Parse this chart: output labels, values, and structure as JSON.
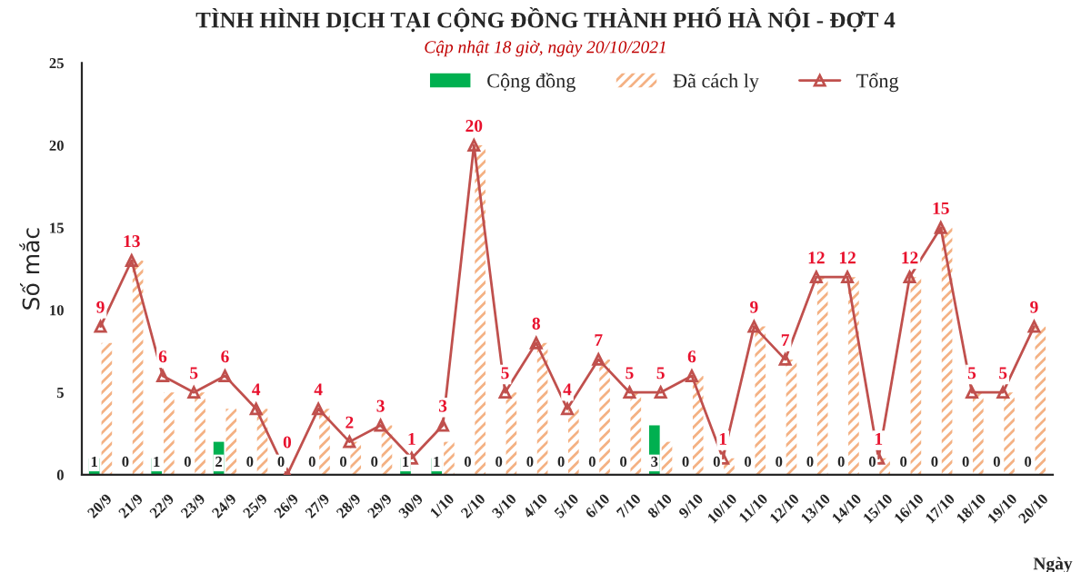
{
  "chart_data": {
    "type": "bar",
    "title": "TÌNH HÌNH DỊCH TẠI CỘNG ĐỒNG THÀNH PHỐ HÀ NỘI - ĐỢT 4",
    "subtitle": "Cập nhật 18 giờ, ngày 20/10/2021",
    "xlabel": "Ngày",
    "ylabel": "Số mắc",
    "categories": [
      "20/9",
      "21/9",
      "22/9",
      "23/9",
      "24/9",
      "25/9",
      "26/9",
      "27/9",
      "28/9",
      "29/9",
      "30/9",
      "1/10",
      "2/10",
      "3/10",
      "4/10",
      "5/10",
      "6/10",
      "7/10",
      "8/10",
      "9/10",
      "10/10",
      "11/10",
      "12/10",
      "13/10",
      "14/10",
      "15/10",
      "16/10",
      "17/10",
      "18/10",
      "19/10",
      "20/10"
    ],
    "series": [
      {
        "name": "Cộng đồng",
        "color": "#00b050",
        "values": [
          1,
          0,
          1,
          0,
          2,
          0,
          0,
          0,
          0,
          0,
          1,
          1,
          0,
          0,
          0,
          0,
          0,
          0,
          3,
          0,
          0,
          0,
          0,
          0,
          0,
          0,
          0,
          0,
          0,
          0,
          0
        ],
        "value_labels": [
          "1",
          "0",
          "1",
          "0",
          "2",
          "0",
          "0",
          "0",
          "0",
          "0",
          "1",
          "1",
          "0",
          "0",
          "0",
          "0",
          "0",
          "0",
          "3",
          "0",
          "0",
          "0",
          "0",
          "0",
          "0",
          "0",
          "0",
          "0",
          "0",
          "0",
          "0"
        ]
      },
      {
        "name": "Đã cách ly",
        "color": "#f4b183",
        "values": [
          8,
          13,
          5,
          5,
          4,
          4,
          0,
          4,
          2,
          3,
          0,
          2,
          20,
          5,
          8,
          4,
          7,
          5,
          2,
          6,
          1,
          9,
          7,
          12,
          12,
          1,
          12,
          15,
          5,
          5,
          9
        ]
      },
      {
        "name": "Tổng",
        "type": "line",
        "color": "#c0504d",
        "marker": "triangle",
        "values": [
          9,
          13,
          6,
          5,
          6,
          4,
          0,
          4,
          2,
          3,
          1,
          3,
          20,
          5,
          8,
          4,
          7,
          5,
          5,
          6,
          1,
          9,
          7,
          12,
          12,
          1,
          12,
          15,
          5,
          5,
          9
        ],
        "value_labels": [
          "9",
          "13",
          "6",
          "5",
          "6",
          "4",
          "0",
          "4",
          "2",
          "3",
          "1",
          "3",
          "20",
          "5",
          "8",
          "4",
          "7",
          "5",
          "5",
          "6",
          "1",
          "9",
          "7",
          "12",
          "12",
          "1",
          "12",
          "15",
          "5",
          "5",
          "9"
        ]
      }
    ],
    "ylim": [
      0,
      25
    ],
    "yticks": [
      0,
      5,
      10,
      15,
      20,
      25
    ],
    "grid": false,
    "legend": "top"
  }
}
